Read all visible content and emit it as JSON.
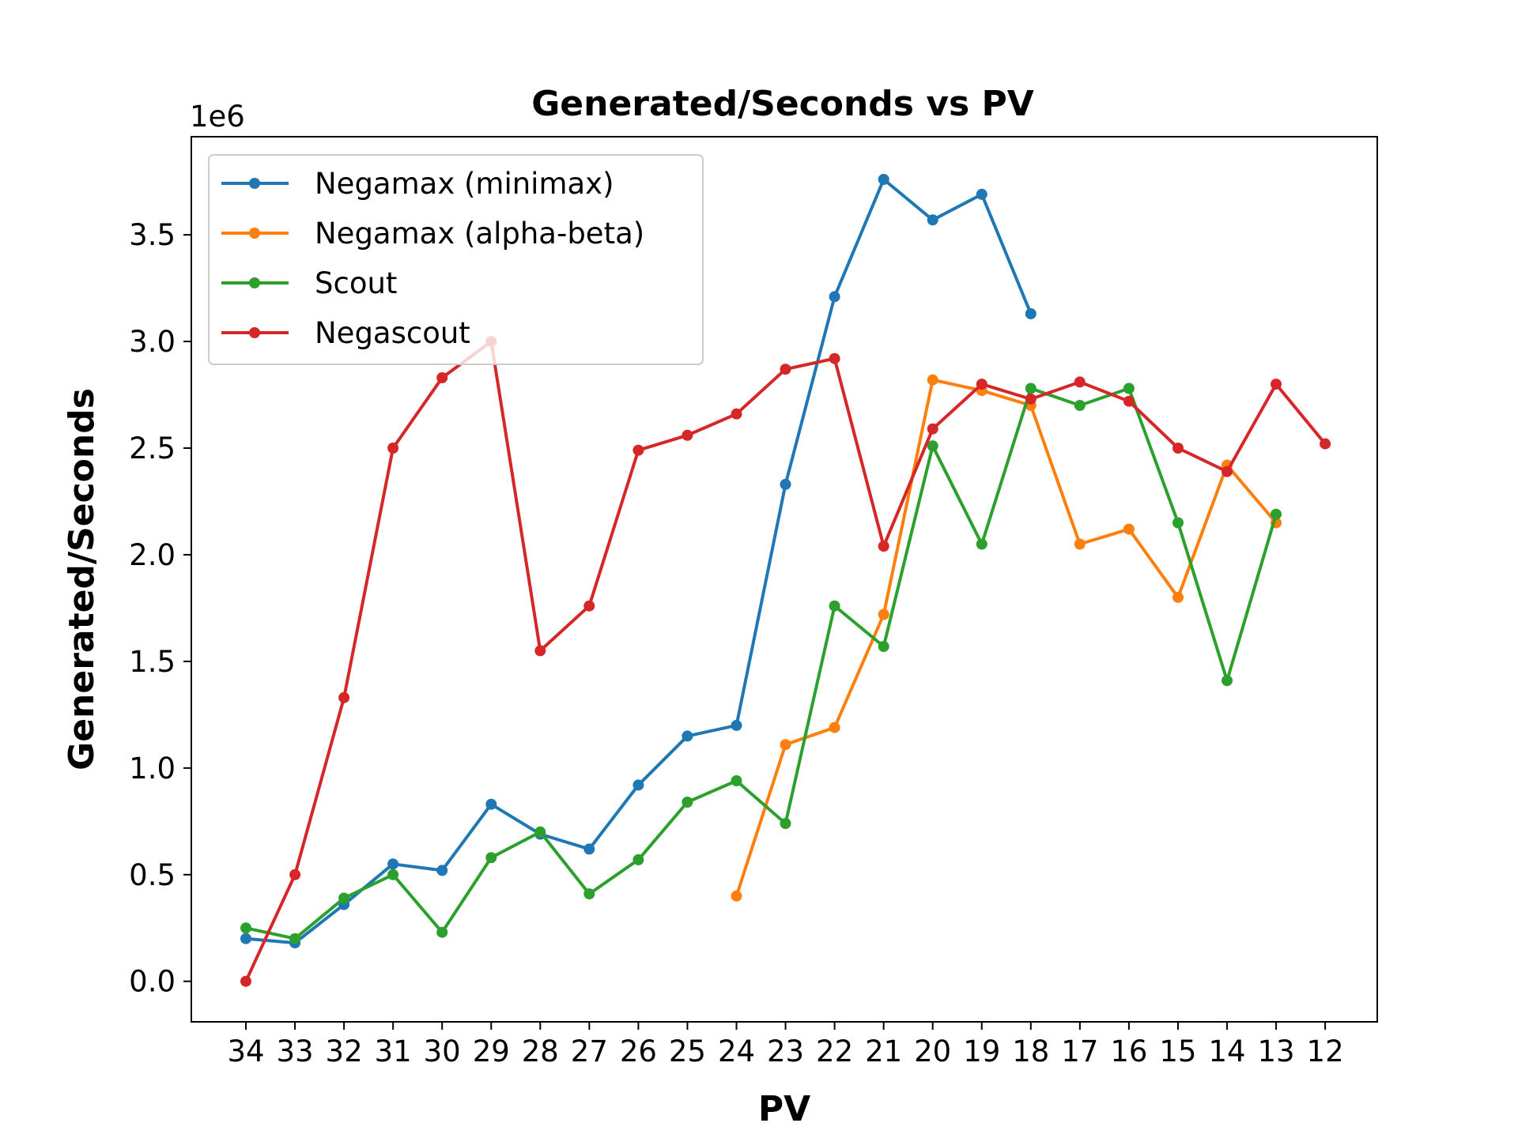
{
  "chart_data": {
    "type": "line",
    "title": "Generated/Seconds vs PV",
    "xlabel": "PV",
    "ylabel": "Generated/Seconds",
    "y_offset_label": "1e6",
    "categories": [
      "34",
      "33",
      "32",
      "31",
      "30",
      "29",
      "28",
      "27",
      "26",
      "25",
      "24",
      "23",
      "22",
      "21",
      "20",
      "19",
      "18",
      "17",
      "16",
      "15",
      "14",
      "13",
      "12"
    ],
    "yticks": [
      0.0,
      0.5,
      1.0,
      1.5,
      2.0,
      2.5,
      3.0,
      3.5
    ],
    "ytick_labels": [
      "0.0",
      "0.5",
      "1.0",
      "1.5",
      "2.0",
      "2.5",
      "3.0",
      "3.5"
    ],
    "ylim": [
      -0.19,
      3.96
    ],
    "y_units": "millions",
    "legend_position": "upper-left",
    "grid": false,
    "series": [
      {
        "name": "Negamax (minimax)",
        "color": "#1f77b4",
        "values": [
          0.2,
          0.18,
          0.36,
          0.55,
          0.52,
          0.83,
          0.69,
          0.62,
          0.92,
          1.15,
          1.2,
          2.33,
          3.21,
          3.76,
          3.57,
          3.69,
          3.13,
          null,
          null,
          null,
          null,
          null,
          null
        ]
      },
      {
        "name": "Negamax (alpha-beta)",
        "color": "#ff7f0e",
        "values": [
          null,
          null,
          null,
          null,
          null,
          null,
          null,
          null,
          null,
          null,
          0.4,
          1.11,
          1.19,
          1.72,
          2.82,
          2.77,
          2.7,
          2.05,
          2.12,
          1.8,
          2.42,
          2.15,
          null
        ]
      },
      {
        "name": "Scout",
        "color": "#2ca02c",
        "values": [
          0.25,
          0.2,
          0.39,
          0.5,
          0.23,
          0.58,
          0.7,
          0.41,
          0.57,
          0.84,
          0.94,
          0.74,
          1.76,
          1.57,
          2.51,
          2.05,
          2.78,
          2.7,
          2.78,
          2.15,
          1.41,
          2.19,
          null
        ]
      },
      {
        "name": "Negascout",
        "color": "#d62728",
        "values": [
          0.0,
          0.5,
          1.33,
          2.5,
          2.83,
          3.0,
          1.55,
          1.76,
          2.49,
          2.56,
          2.66,
          2.87,
          2.92,
          2.04,
          2.59,
          2.8,
          2.73,
          2.81,
          2.72,
          2.5,
          2.39,
          2.8,
          2.52
        ]
      }
    ]
  }
}
